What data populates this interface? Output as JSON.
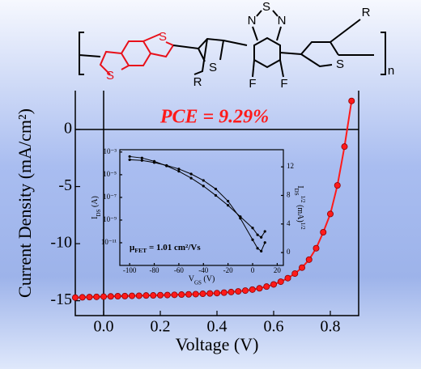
{
  "structure": {
    "atoms": [
      "S",
      "S",
      "S",
      "R",
      "N",
      "S",
      "N",
      "F",
      "F",
      "S",
      "R"
    ],
    "repeat": "n"
  },
  "chart_data": [
    {
      "type": "line",
      "x_label": "Voltage (V)",
      "y_label": "Current Density (mA/cm²)",
      "annotation": "PCE = 9.29%",
      "x": [
        -0.1,
        -0.075,
        -0.05,
        -0.025,
        0,
        0.025,
        0.05,
        0.075,
        0.1,
        0.125,
        0.15,
        0.175,
        0.2,
        0.225,
        0.25,
        0.275,
        0.3,
        0.325,
        0.35,
        0.375,
        0.4,
        0.425,
        0.45,
        0.475,
        0.5,
        0.525,
        0.55,
        0.575,
        0.6,
        0.625,
        0.65,
        0.675,
        0.7,
        0.725,
        0.75,
        0.775,
        0.8,
        0.825,
        0.85,
        0.875
      ],
      "series": [
        {
          "color": "#ff1a1a",
          "values": [
            -14.72,
            -14.7,
            -14.68,
            -14.66,
            -14.64,
            -14.62,
            -14.6,
            -14.59,
            -14.57,
            -14.56,
            -14.54,
            -14.53,
            -14.51,
            -14.5,
            -14.48,
            -14.46,
            -14.44,
            -14.42,
            -14.39,
            -14.36,
            -14.33,
            -14.29,
            -14.24,
            -14.18,
            -14.11,
            -14.02,
            -13.91,
            -13.76,
            -13.57,
            -13.33,
            -13.02,
            -12.62,
            -12.1,
            -11.4,
            -10.4,
            -9.0,
            -7.4,
            -4.9,
            -1.5,
            2.5
          ]
        }
      ],
      "xlim": [
        -0.1,
        0.9
      ],
      "ylim": [
        -16.3,
        3.4
      ],
      "xticks": [
        {
          "value": 0,
          "label": "0.0"
        },
        0.2,
        0.4,
        0.6,
        0.8
      ],
      "yticks": [
        0,
        -5,
        -10,
        -15
      ],
      "zero_lines": true
    },
    {
      "type": "line",
      "log_y": true,
      "x_label": [
        {
          "text": "V"
        },
        {
          "text": "GS",
          "shift": "sub"
        },
        {
          "text": " (V)"
        }
      ],
      "y_label": [
        {
          "text": "I"
        },
        {
          "text": "DS",
          "shift": "sub"
        },
        {
          "text": " (A)"
        }
      ],
      "y2_label": [
        {
          "text": "I"
        },
        {
          "text": "DS",
          "shift": "sub"
        },
        {
          "text": "1/2",
          "shift": "super"
        },
        {
          "text": " (mA)"
        },
        {
          "text": "1/2",
          "shift": "super"
        }
      ],
      "annotation": [
        {
          "text": "μ"
        },
        {
          "text": "FET",
          "shift": "sub"
        },
        {
          "text": " = 1.01 cm²/Vs"
        }
      ],
      "x": [
        -100,
        -90,
        -80,
        -70,
        -60,
        -50,
        -40,
        -30,
        -20,
        -10,
        0,
        4,
        7,
        10
      ],
      "series": [
        {
          "color": "#000000",
          "values": [
            0.0004,
            0.0003,
            0.00015,
            6e-05,
            2e-05,
            5e-06,
            1e-06,
            1.5e-07,
            2e-08,
            2e-09,
            2e-10,
            5e-11,
            3e-11,
            1e-10
          ]
        },
        {
          "color": "#000000",
          "axis": "y2",
          "values": [
            13,
            12.9,
            12.6,
            12.2,
            11.7,
            11.0,
            10.1,
            8.9,
            7.2,
            4.8,
            1.8,
            0.6,
            0.2,
            1.4
          ]
        }
      ],
      "xlim": [
        -108,
        25
      ],
      "ylim": [
        1e-13,
        0.0016
      ],
      "xticks": [
        -100,
        -80,
        -60,
        -40,
        -20,
        0,
        20
      ],
      "yticks": [
        {
          "value": 0.001,
          "label": "10⁻³"
        },
        {
          "value": 1e-05,
          "label": "10⁻⁵"
        },
        {
          "value": 1e-07,
          "label": "10⁻⁷"
        },
        {
          "value": 1e-09,
          "label": "10⁻⁹"
        },
        {
          "value": 1e-11,
          "label": "10⁻¹¹"
        }
      ],
      "y2lim": [
        -1.8,
        14.4
      ],
      "y2ticks": [
        0,
        4,
        8,
        12
      ]
    }
  ]
}
